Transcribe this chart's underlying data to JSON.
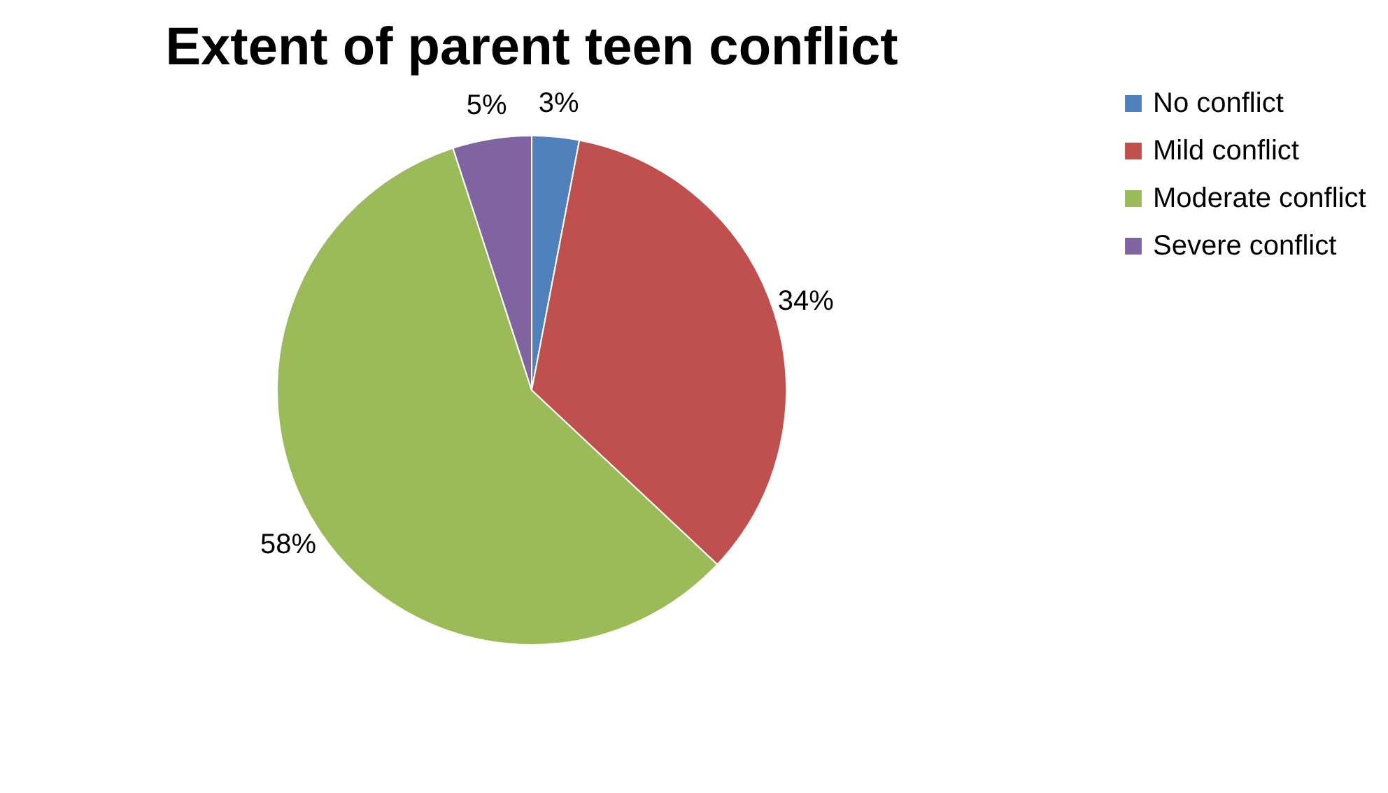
{
  "chart_data": {
    "type": "pie",
    "title": "Extent of parent teen conflict",
    "categories": [
      "No  conflict",
      "Mild conflict",
      "Moderate conflict",
      "Severe conflict"
    ],
    "values": [
      3,
      34,
      58,
      5
    ],
    "colors": [
      "#4f81bd",
      "#c0504d",
      "#9bbb59",
      "#8064a2"
    ],
    "value_labels": [
      "3%",
      "34%",
      "58%",
      "5%"
    ],
    "legend": "right"
  }
}
